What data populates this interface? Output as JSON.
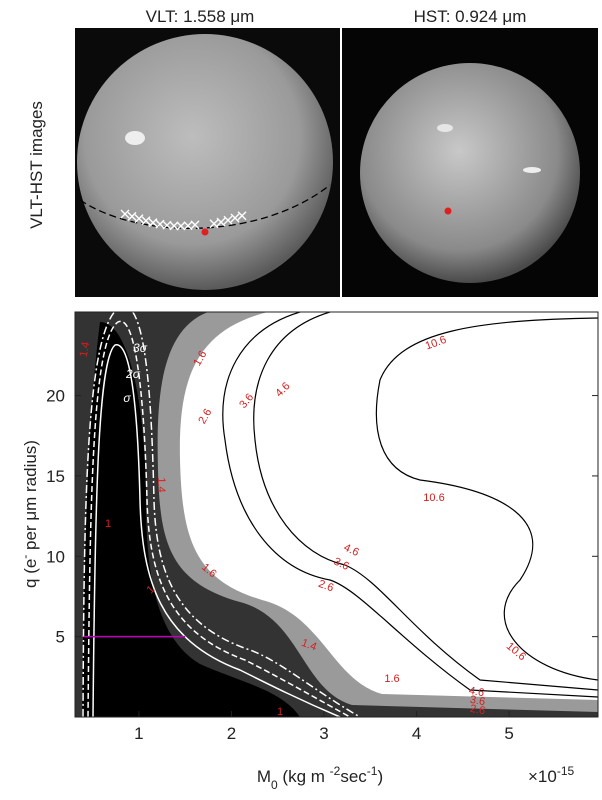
{
  "figure": {
    "top_ylabel": "VLT-HST images",
    "panels": [
      {
        "title": "VLT: 1.558 μm"
      },
      {
        "title": "HST: 0.924 μm"
      }
    ]
  },
  "chart_data": {
    "type": "contour",
    "xlabel": [
      "M",
      "0",
      " (kg m ",
      "-2",
      "sec",
      "-1",
      ")"
    ],
    "x_multiplier": [
      "×10",
      "-15"
    ],
    "ylabel": [
      "q (e",
      "-",
      " per  μm radius)"
    ],
    "xlim": [
      0.31,
      5.96
    ],
    "ylim": [
      0,
      25.2
    ],
    "xticks": [
      1,
      2,
      3,
      4,
      5
    ],
    "yticks": [
      5,
      10,
      15,
      20
    ],
    "contour_levels": [
      1,
      1.4,
      1.6,
      2.6,
      3.6,
      4.6,
      10.6
    ],
    "sigma_labels": [
      "σ",
      "2σ",
      "3σ"
    ],
    "line": {
      "y": 5,
      "x": [
        0.4,
        1.5
      ],
      "color": "#c000c0"
    }
  }
}
